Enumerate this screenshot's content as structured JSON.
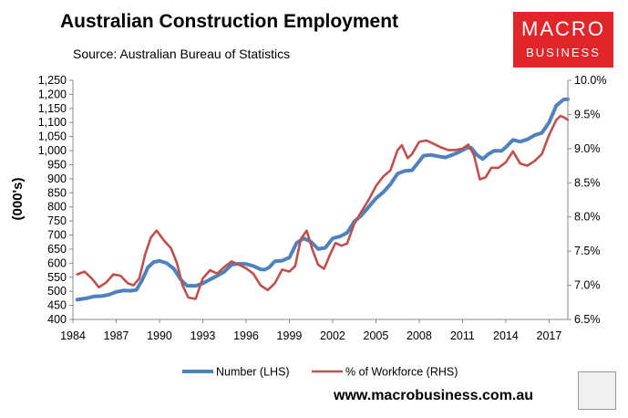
{
  "header": {
    "title": "Australian Construction Employment",
    "subtitle": "Source: Australian Bureau of Statistics"
  },
  "logo": {
    "line1": "MACRO",
    "line2": "BUSINESS",
    "color": "#e0262a"
  },
  "footer": {
    "url": "www.macrobusiness.com.au"
  },
  "chart_data": {
    "type": "line",
    "title": "Australian Construction Employment",
    "ylabel": "(000's)",
    "left_axis": {
      "range": [
        400,
        1250
      ],
      "ticks": [
        "400",
        "450",
        "500",
        "550",
        "600",
        "650",
        "700",
        "750",
        "800",
        "850",
        "900",
        "950",
        "1,000",
        "1,050",
        "1,100",
        "1,150",
        "1,200",
        "1,250"
      ]
    },
    "right_axis": {
      "range": [
        6.5,
        10.0
      ],
      "ticks": [
        "6.5%",
        "7.0%",
        "7.5%",
        "8.0%",
        "8.5%",
        "9.0%",
        "9.5%",
        "10.0%"
      ]
    },
    "x_axis": {
      "range": [
        1984,
        2018.3
      ],
      "ticks": [
        "1984",
        "1987",
        "1990",
        "1993",
        "1996",
        "1999",
        "2002",
        "2005",
        "2008",
        "2011",
        "2014",
        "2017"
      ]
    },
    "grid": false,
    "legend_position": "bottom",
    "series": [
      {
        "name": "Number (LHS)",
        "axis": "left",
        "color": "#4f81bd",
        "points": [
          [
            1984.3,
            470
          ],
          [
            1985.0,
            476
          ],
          [
            1985.5,
            482
          ],
          [
            1986.0,
            483
          ],
          [
            1986.5,
            488
          ],
          [
            1987.0,
            498
          ],
          [
            1987.5,
            503
          ],
          [
            1988.0,
            502
          ],
          [
            1988.4,
            505
          ],
          [
            1988.8,
            540
          ],
          [
            1989.2,
            585
          ],
          [
            1989.6,
            604
          ],
          [
            1990.0,
            608
          ],
          [
            1990.5,
            600
          ],
          [
            1991.0,
            580
          ],
          [
            1991.5,
            540
          ],
          [
            1991.9,
            520
          ],
          [
            1992.5,
            519
          ],
          [
            1993.0,
            528
          ],
          [
            1993.5,
            542
          ],
          [
            1994.0,
            555
          ],
          [
            1994.5,
            570
          ],
          [
            1995.0,
            595
          ],
          [
            1995.5,
            598
          ],
          [
            1996.0,
            597
          ],
          [
            1996.5,
            590
          ],
          [
            1997.0,
            578
          ],
          [
            1997.3,
            577
          ],
          [
            1997.6,
            585
          ],
          [
            1998.0,
            607
          ],
          [
            1998.5,
            609
          ],
          [
            1999.0,
            620
          ],
          [
            1999.5,
            672
          ],
          [
            2000.0,
            688
          ],
          [
            2000.5,
            676
          ],
          [
            2001.0,
            650
          ],
          [
            2001.5,
            655
          ],
          [
            2002.0,
            688
          ],
          [
            2002.5,
            695
          ],
          [
            2003.0,
            708
          ],
          [
            2003.5,
            748
          ],
          [
            2004.0,
            770
          ],
          [
            2004.5,
            800
          ],
          [
            2005.0,
            830
          ],
          [
            2005.5,
            852
          ],
          [
            2006.0,
            880
          ],
          [
            2006.5,
            918
          ],
          [
            2007.0,
            928
          ],
          [
            2007.5,
            930
          ],
          [
            2008.0,
            962
          ],
          [
            2008.3,
            982
          ],
          [
            2008.8,
            985
          ],
          [
            2009.3,
            980
          ],
          [
            2009.8,
            976
          ],
          [
            2010.3,
            985
          ],
          [
            2010.8,
            996
          ],
          [
            2011.3,
            1010
          ],
          [
            2011.6,
            1010
          ],
          [
            2012.0,
            985
          ],
          [
            2012.4,
            970
          ],
          [
            2012.8,
            988
          ],
          [
            2013.2,
            1000
          ],
          [
            2013.7,
            999
          ],
          [
            2014.0,
            1012
          ],
          [
            2014.5,
            1038
          ],
          [
            2015.0,
            1032
          ],
          [
            2015.5,
            1040
          ],
          [
            2016.0,
            1055
          ],
          [
            2016.5,
            1063
          ],
          [
            2017.0,
            1100
          ],
          [
            2017.5,
            1160
          ],
          [
            2018.0,
            1182
          ],
          [
            2018.3,
            1183
          ]
        ]
      },
      {
        "name": "% of Workforce (RHS)",
        "axis": "right",
        "color": "#c0504d",
        "points": [
          [
            1984.3,
            7.16
          ],
          [
            1984.8,
            7.2
          ],
          [
            1985.3,
            7.1
          ],
          [
            1985.8,
            6.97
          ],
          [
            1986.3,
            7.04
          ],
          [
            1986.8,
            7.16
          ],
          [
            1987.3,
            7.14
          ],
          [
            1987.8,
            7.03
          ],
          [
            1988.2,
            7.0
          ],
          [
            1988.6,
            7.1
          ],
          [
            1989.0,
            7.45
          ],
          [
            1989.4,
            7.7
          ],
          [
            1989.8,
            7.8
          ],
          [
            1990.3,
            7.66
          ],
          [
            1990.8,
            7.54
          ],
          [
            1991.2,
            7.33
          ],
          [
            1991.6,
            7.0
          ],
          [
            1992.0,
            6.82
          ],
          [
            1992.5,
            6.8
          ],
          [
            1993.0,
            7.1
          ],
          [
            1993.5,
            7.22
          ],
          [
            1994.0,
            7.17
          ],
          [
            1994.5,
            7.27
          ],
          [
            1995.0,
            7.35
          ],
          [
            1995.5,
            7.3
          ],
          [
            1996.0,
            7.25
          ],
          [
            1996.5,
            7.17
          ],
          [
            1997.0,
            7.0
          ],
          [
            1997.5,
            6.93
          ],
          [
            1998.0,
            7.03
          ],
          [
            1998.5,
            7.23
          ],
          [
            1999.0,
            7.2
          ],
          [
            1999.4,
            7.28
          ],
          [
            1999.8,
            7.68
          ],
          [
            2000.2,
            7.8
          ],
          [
            2000.6,
            7.52
          ],
          [
            2001.0,
            7.3
          ],
          [
            2001.4,
            7.24
          ],
          [
            2001.8,
            7.44
          ],
          [
            2002.2,
            7.62
          ],
          [
            2002.6,
            7.58
          ],
          [
            2003.0,
            7.61
          ],
          [
            2003.5,
            7.9
          ],
          [
            2004.0,
            8.08
          ],
          [
            2004.5,
            8.25
          ],
          [
            2005.0,
            8.45
          ],
          [
            2005.5,
            8.59
          ],
          [
            2006.0,
            8.68
          ],
          [
            2006.5,
            8.98
          ],
          [
            2006.8,
            9.05
          ],
          [
            2007.2,
            8.86
          ],
          [
            2007.5,
            8.92
          ],
          [
            2008.0,
            9.1
          ],
          [
            2008.5,
            9.12
          ],
          [
            2009.0,
            9.07
          ],
          [
            2009.5,
            9.02
          ],
          [
            2010.0,
            8.98
          ],
          [
            2010.5,
            8.98
          ],
          [
            2011.0,
            9.0
          ],
          [
            2011.4,
            9.06
          ],
          [
            2011.8,
            8.9
          ],
          [
            2012.2,
            8.55
          ],
          [
            2012.6,
            8.58
          ],
          [
            2013.0,
            8.72
          ],
          [
            2013.5,
            8.72
          ],
          [
            2014.0,
            8.8
          ],
          [
            2014.5,
            8.96
          ],
          [
            2015.0,
            8.78
          ],
          [
            2015.5,
            8.75
          ],
          [
            2016.0,
            8.82
          ],
          [
            2016.5,
            8.92
          ],
          [
            2017.0,
            9.2
          ],
          [
            2017.5,
            9.42
          ],
          [
            2017.8,
            9.48
          ],
          [
            2018.1,
            9.45
          ],
          [
            2018.3,
            9.42
          ]
        ]
      }
    ]
  }
}
